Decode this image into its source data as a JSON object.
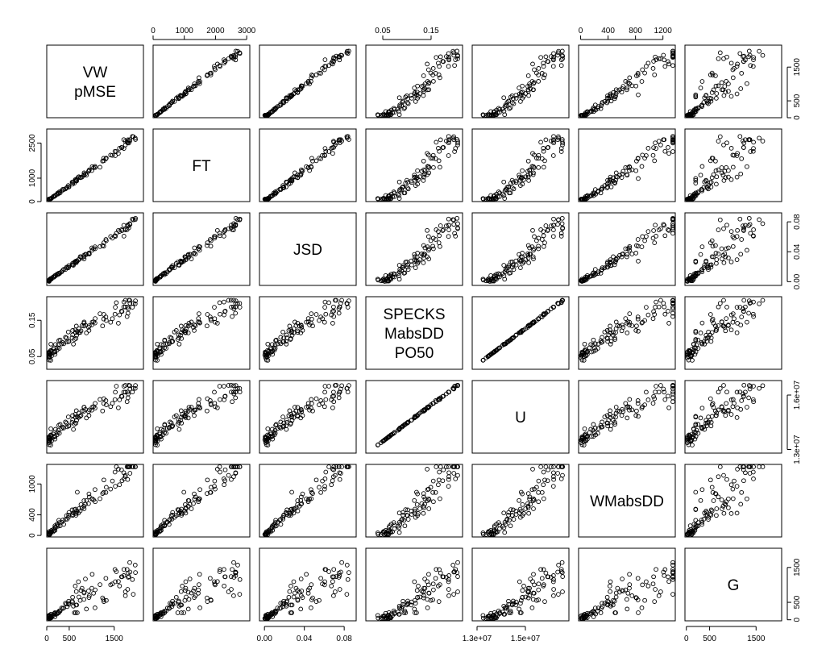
{
  "chart_data": {
    "type": "scatter",
    "kind": "scatterplot-matrix",
    "variables": [
      {
        "id": "vw_pmse",
        "label_lines": [
          "VW",
          "pMSE"
        ],
        "lim": [
          0,
          2150
        ],
        "ticks": [
          0,
          500,
          1500
        ],
        "tick_labels": [
          "0",
          "500",
          "1500"
        ]
      },
      {
        "id": "ft",
        "label_lines": [
          "FT"
        ],
        "lim": [
          0,
          3100
        ],
        "ticks": [
          0,
          1000,
          2000,
          3000
        ],
        "tick_labels": [
          "0",
          "1000",
          "2000",
          "3000"
        ],
        "left_ticks": [
          0,
          1000,
          2500
        ],
        "left_tick_labels": [
          "0",
          "1000",
          "2500"
        ]
      },
      {
        "id": "jsd",
        "label_lines": [
          "JSD"
        ],
        "lim": [
          -0.005,
          0.092
        ],
        "ticks": [
          0.0,
          0.04,
          0.08
        ],
        "tick_labels": [
          "0.00",
          "0.04",
          "0.08"
        ]
      },
      {
        "id": "specks",
        "label_lines": [
          "SPECKS",
          "MabsDD",
          "PO50"
        ],
        "lim": [
          0.015,
          0.215
        ],
        "ticks": [
          0.05,
          0.15
        ],
        "tick_labels": [
          "0.05",
          "0.15"
        ]
      },
      {
        "id": "u",
        "label_lines": [
          "U"
        ],
        "lim": [
          12800000,
          16800000
        ],
        "ticks": [
          13000000,
          15000000
        ],
        "tick_labels": [
          "1.3e+07",
          "1.5e+07"
        ],
        "right_ticks": [
          13000000,
          16000000
        ],
        "right_tick_labels": [
          "1.3e+07",
          "1.6e+07"
        ]
      },
      {
        "id": "wmabsdd",
        "label_lines": [
          "WMabsDD"
        ],
        "lim": [
          -30,
          1380
        ],
        "ticks": [
          0,
          400,
          800,
          1200
        ],
        "tick_labels": [
          "0",
          "400",
          "800",
          "1200"
        ],
        "left_ticks": [
          0,
          400,
          1000
        ],
        "left_tick_labels": [
          "0",
          "400",
          "1000"
        ]
      },
      {
        "id": "g",
        "label_lines": [
          "G"
        ],
        "lim": [
          -30,
          2050
        ],
        "ticks": [
          0,
          500,
          1500
        ],
        "tick_labels": [
          "0",
          "500",
          "1500"
        ]
      }
    ],
    "axes": {
      "top": [
        1,
        3,
        5
      ],
      "bottom": [
        0,
        2,
        4,
        6
      ],
      "left": [
        1,
        3,
        5
      ],
      "right": [
        0,
        2,
        4,
        6
      ]
    },
    "grid": false,
    "legend": "none",
    "title": "",
    "n_points": 100
  }
}
